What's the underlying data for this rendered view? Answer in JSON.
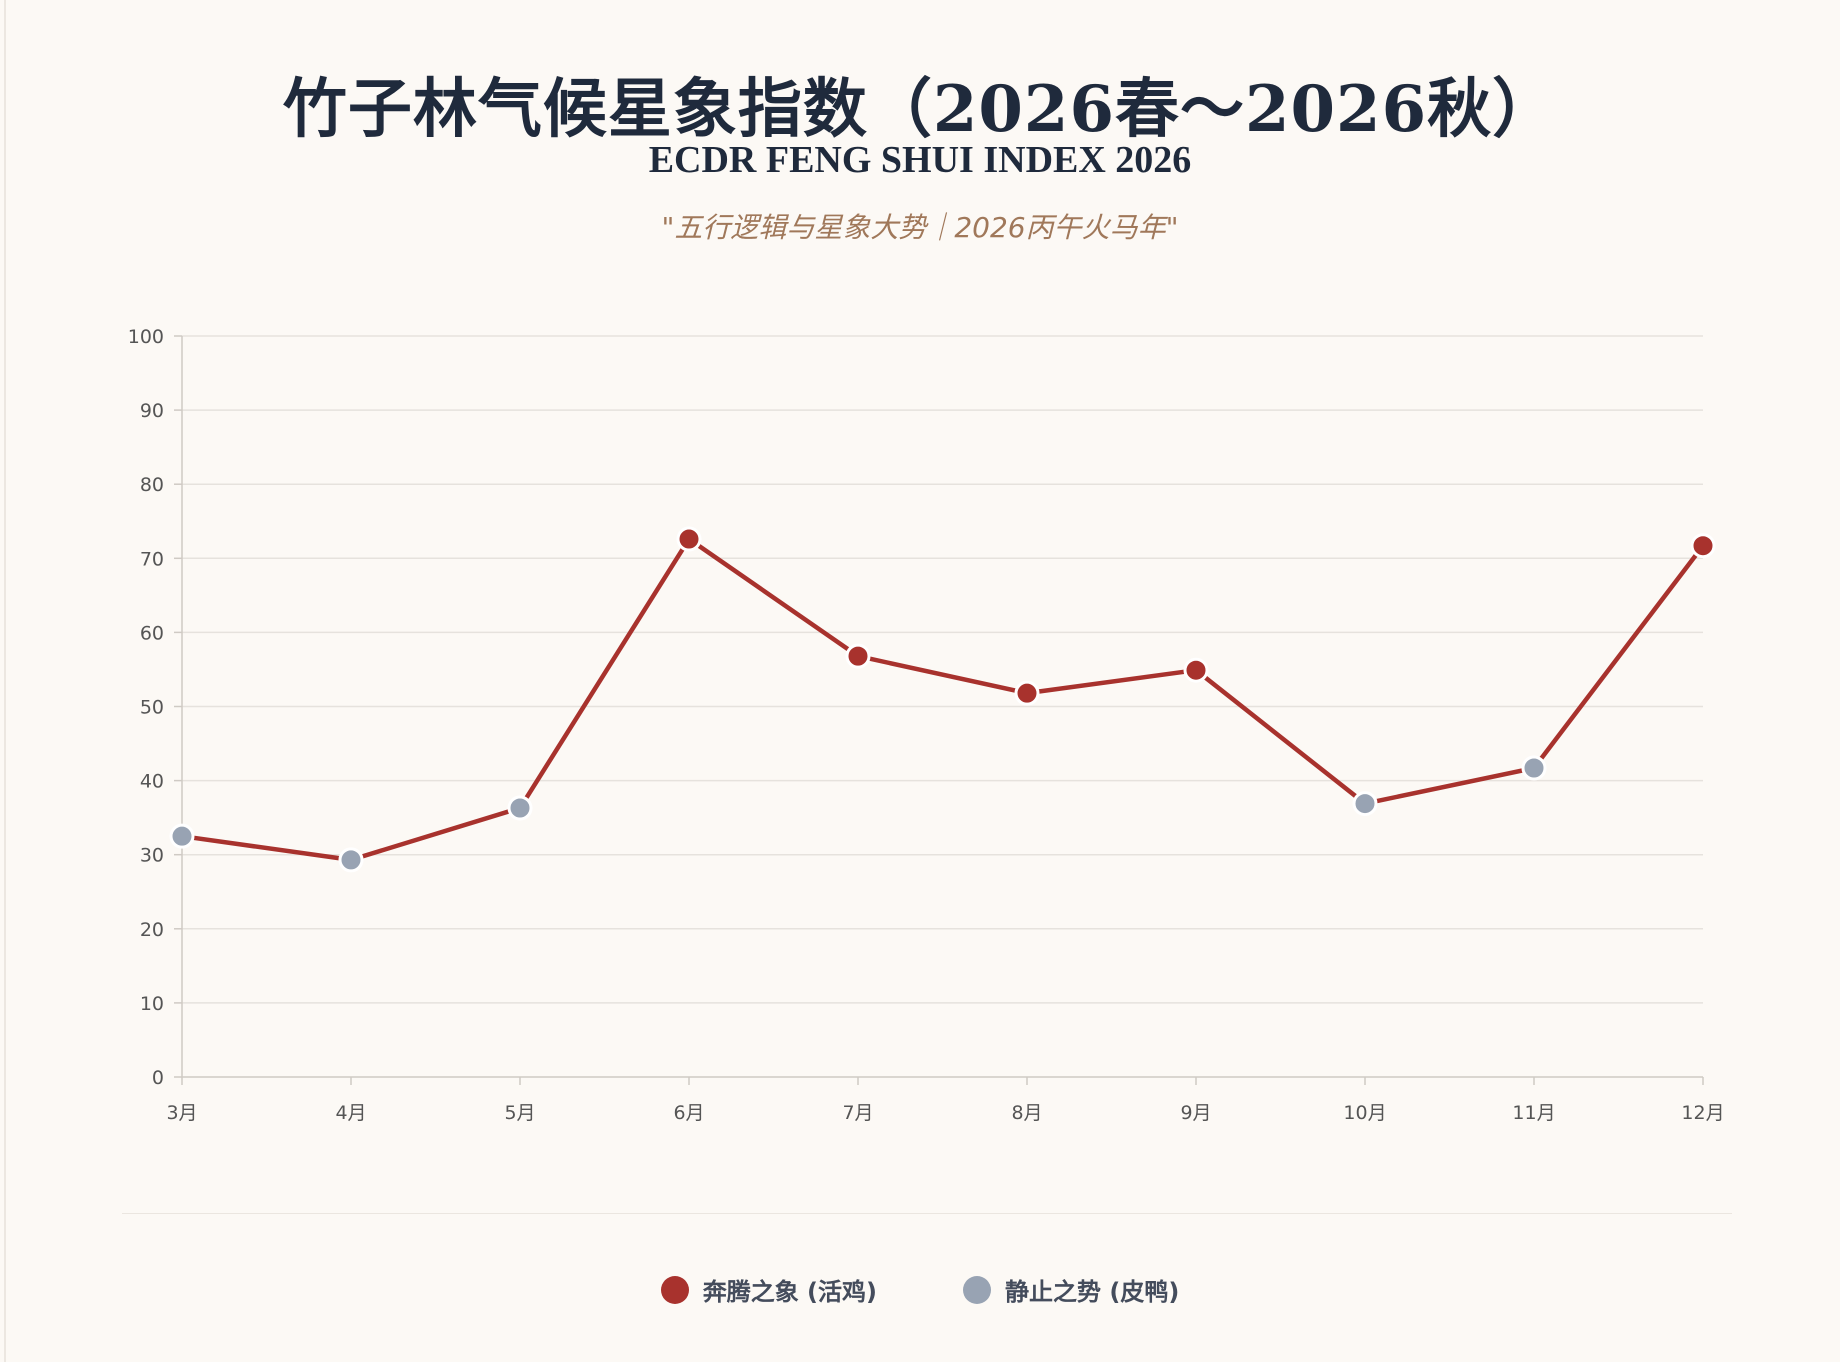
{
  "colors": {
    "line": "#a8322d",
    "active_marker": "#a8322d",
    "static_marker": "#98a3b3",
    "grid": "#e6e2dd",
    "axis": "#cfcac4",
    "tick_text": "#555555"
  },
  "chart_data": {
    "type": "line",
    "title": "竹子林气候星象指数（2026春～2026秋）",
    "subtitle": "ECDR FENG SHUI INDEX 2026",
    "tagline": "\"五行逻辑与星象大势｜2026丙午火马年\"",
    "categories": [
      "3月",
      "4月",
      "5月",
      "6月",
      "7月",
      "8月",
      "9月",
      "10月",
      "11月",
      "12月"
    ],
    "values": [
      32.5,
      29.3,
      36.3,
      72.6,
      56.8,
      51.8,
      54.9,
      36.9,
      41.7,
      71.7
    ],
    "point_class": [
      "static",
      "static",
      "static",
      "active",
      "active",
      "active",
      "active",
      "static",
      "static",
      "active"
    ],
    "ylim": [
      0,
      100
    ],
    "yticks": [
      "0",
      "10",
      "20",
      "30",
      "40",
      "50",
      "60",
      "70",
      "80",
      "90",
      "100"
    ],
    "grid": true,
    "legend_position": "bottom-center",
    "legend": [
      {
        "name": "奔腾之象 (活鸡)",
        "class": "active"
      },
      {
        "name": "静止之势 (皮鸭)",
        "class": "static"
      }
    ]
  }
}
